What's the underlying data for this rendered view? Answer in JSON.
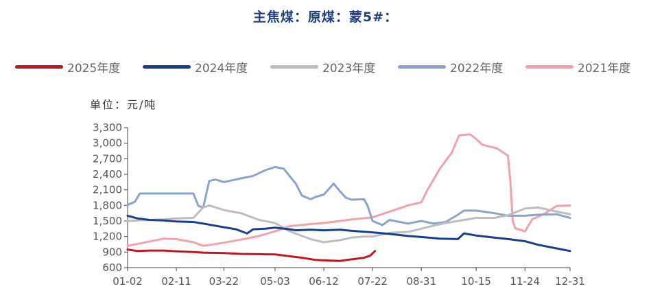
{
  "title": "主焦煤：原煤：蒙5#：",
  "unit_label": "单位：元/吨",
  "colors": {
    "2025": "#c0171f",
    "2024": "#163f8f",
    "2023": "#bdbdbd",
    "2022": "#8aa2cc",
    "2021": "#f2a1ac"
  },
  "chart_data": {
    "type": "line",
    "x_ticks": [
      "01-02",
      "02-11",
      "03-22",
      "05-03",
      "06-12",
      "07-22",
      "08-31",
      "10-15",
      "11-24",
      "12-31"
    ],
    "ylim": [
      600,
      3300
    ],
    "y_ticks": [
      "3,300",
      "3,000",
      "2,700",
      "2,400",
      "2,100",
      "1,800",
      "1,500",
      "1,200",
      "900",
      "600"
    ],
    "y_tick_values": [
      3300,
      3000,
      2700,
      2400,
      2100,
      1800,
      1500,
      1200,
      900,
      600
    ],
    "grid": false,
    "legend_position": "top",
    "series": [
      {
        "name": "2025年度",
        "color": "#c0171f",
        "points": [
          [
            "01-02",
            950
          ],
          [
            "01-10",
            920
          ],
          [
            "01-20",
            930
          ],
          [
            "02-01",
            930
          ],
          [
            "02-11",
            915
          ],
          [
            "02-25",
            900
          ],
          [
            "03-05",
            890
          ],
          [
            "03-22",
            880
          ],
          [
            "04-05",
            865
          ],
          [
            "04-20",
            860
          ],
          [
            "05-03",
            855
          ],
          [
            "05-15",
            820
          ],
          [
            "05-25",
            790
          ],
          [
            "06-05",
            750
          ],
          [
            "06-12",
            740
          ],
          [
            "06-25",
            730
          ],
          [
            "07-05",
            760
          ],
          [
            "07-15",
            790
          ],
          [
            "07-20",
            830
          ],
          [
            "07-24",
            920
          ]
        ]
      },
      {
        "name": "2024年度",
        "color": "#163f8f",
        "points": [
          [
            "01-02",
            1600
          ],
          [
            "01-10",
            1550
          ],
          [
            "01-20",
            1520
          ],
          [
            "02-01",
            1510
          ],
          [
            "02-11",
            1490
          ],
          [
            "02-25",
            1480
          ],
          [
            "03-05",
            1450
          ],
          [
            "03-22",
            1380
          ],
          [
            "04-01",
            1340
          ],
          [
            "04-10",
            1260
          ],
          [
            "04-15",
            1340
          ],
          [
            "04-25",
            1350
          ],
          [
            "05-03",
            1370
          ],
          [
            "05-15",
            1340
          ],
          [
            "05-20",
            1320
          ],
          [
            "06-01",
            1330
          ],
          [
            "06-12",
            1320
          ],
          [
            "06-25",
            1330
          ],
          [
            "07-05",
            1310
          ],
          [
            "07-22",
            1280
          ],
          [
            "08-05",
            1250
          ],
          [
            "08-20",
            1210
          ],
          [
            "08-31",
            1190
          ],
          [
            "09-15",
            1160
          ],
          [
            "09-30",
            1150
          ],
          [
            "10-05",
            1260
          ],
          [
            "10-15",
            1220
          ],
          [
            "10-30",
            1180
          ],
          [
            "11-10",
            1150
          ],
          [
            "11-24",
            1110
          ],
          [
            "12-05",
            1040
          ],
          [
            "12-20",
            970
          ],
          [
            "12-31",
            920
          ]
        ]
      },
      {
        "name": "2023年度",
        "color": "#bdbdbd",
        "points": [
          [
            "01-02",
            1500
          ],
          [
            "01-20",
            1520
          ],
          [
            "02-01",
            1530
          ],
          [
            "02-11",
            1550
          ],
          [
            "02-25",
            1560
          ],
          [
            "03-05",
            1760
          ],
          [
            "03-10",
            1800
          ],
          [
            "03-22",
            1710
          ],
          [
            "04-05",
            1650
          ],
          [
            "04-20",
            1520
          ],
          [
            "05-03",
            1460
          ],
          [
            "05-15",
            1300
          ],
          [
            "06-01",
            1150
          ],
          [
            "06-12",
            1090
          ],
          [
            "06-25",
            1130
          ],
          [
            "07-05",
            1180
          ],
          [
            "07-15",
            1200
          ],
          [
            "07-22",
            1200
          ],
          [
            "08-05",
            1270
          ],
          [
            "08-20",
            1290
          ],
          [
            "08-31",
            1350
          ],
          [
            "09-10",
            1410
          ],
          [
            "09-20",
            1460
          ],
          [
            "09-30",
            1500
          ],
          [
            "10-15",
            1560
          ],
          [
            "10-30",
            1560
          ],
          [
            "11-10",
            1610
          ],
          [
            "11-24",
            1740
          ],
          [
            "12-05",
            1760
          ],
          [
            "12-20",
            1680
          ],
          [
            "12-31",
            1630
          ]
        ]
      },
      {
        "name": "2022年度",
        "color": "#8aa2cc",
        "points": [
          [
            "01-02",
            1810
          ],
          [
            "01-08",
            1870
          ],
          [
            "01-12",
            2030
          ],
          [
            "01-25",
            2030
          ],
          [
            "02-11",
            2030
          ],
          [
            "02-25",
            2030
          ],
          [
            "03-01",
            1790
          ],
          [
            "03-05",
            1760
          ],
          [
            "03-10",
            2270
          ],
          [
            "03-15",
            2300
          ],
          [
            "03-22",
            2250
          ],
          [
            "04-05",
            2320
          ],
          [
            "04-15",
            2370
          ],
          [
            "04-25",
            2480
          ],
          [
            "05-03",
            2540
          ],
          [
            "05-10",
            2510
          ],
          [
            "05-20",
            2220
          ],
          [
            "05-25",
            1990
          ],
          [
            "06-01",
            1920
          ],
          [
            "06-05",
            1960
          ],
          [
            "06-12",
            2010
          ],
          [
            "06-20",
            2220
          ],
          [
            "06-25",
            2080
          ],
          [
            "06-30",
            1950
          ],
          [
            "07-05",
            1910
          ],
          [
            "07-15",
            1920
          ],
          [
            "07-18",
            1790
          ],
          [
            "07-22",
            1500
          ],
          [
            "07-30",
            1420
          ],
          [
            "08-05",
            1520
          ],
          [
            "08-20",
            1450
          ],
          [
            "08-31",
            1500
          ],
          [
            "09-10",
            1450
          ],
          [
            "09-20",
            1480
          ],
          [
            "09-30",
            1620
          ],
          [
            "10-05",
            1700
          ],
          [
            "10-15",
            1700
          ],
          [
            "10-30",
            1650
          ],
          [
            "11-10",
            1600
          ],
          [
            "11-24",
            1600
          ],
          [
            "12-05",
            1620
          ],
          [
            "12-20",
            1630
          ],
          [
            "12-31",
            1560
          ]
        ]
      },
      {
        "name": "2021年度",
        "color": "#f2a1ac",
        "points": [
          [
            "01-02",
            1020
          ],
          [
            "01-15",
            1080
          ],
          [
            "02-01",
            1160
          ],
          [
            "02-11",
            1150
          ],
          [
            "02-25",
            1090
          ],
          [
            "03-05",
            1020
          ],
          [
            "03-22",
            1080
          ],
          [
            "04-05",
            1140
          ],
          [
            "04-20",
            1210
          ],
          [
            "05-03",
            1300
          ],
          [
            "05-15",
            1400
          ],
          [
            "06-01",
            1440
          ],
          [
            "06-12",
            1460
          ],
          [
            "06-25",
            1500
          ],
          [
            "07-05",
            1530
          ],
          [
            "07-22",
            1570
          ],
          [
            "08-05",
            1680
          ],
          [
            "08-20",
            1800
          ],
          [
            "08-31",
            1860
          ],
          [
            "09-05",
            2100
          ],
          [
            "09-15",
            2500
          ],
          [
            "09-25",
            2820
          ],
          [
            "10-01",
            3150
          ],
          [
            "10-10",
            3170
          ],
          [
            "10-15",
            3080
          ],
          [
            "10-20",
            2970
          ],
          [
            "11-01",
            2900
          ],
          [
            "11-10",
            2760
          ],
          [
            "11-12",
            2280
          ],
          [
            "11-14",
            1500
          ],
          [
            "11-16",
            1360
          ],
          [
            "11-24",
            1300
          ],
          [
            "11-30",
            1530
          ],
          [
            "12-10",
            1640
          ],
          [
            "12-20",
            1790
          ],
          [
            "12-31",
            1800
          ]
        ]
      }
    ]
  }
}
